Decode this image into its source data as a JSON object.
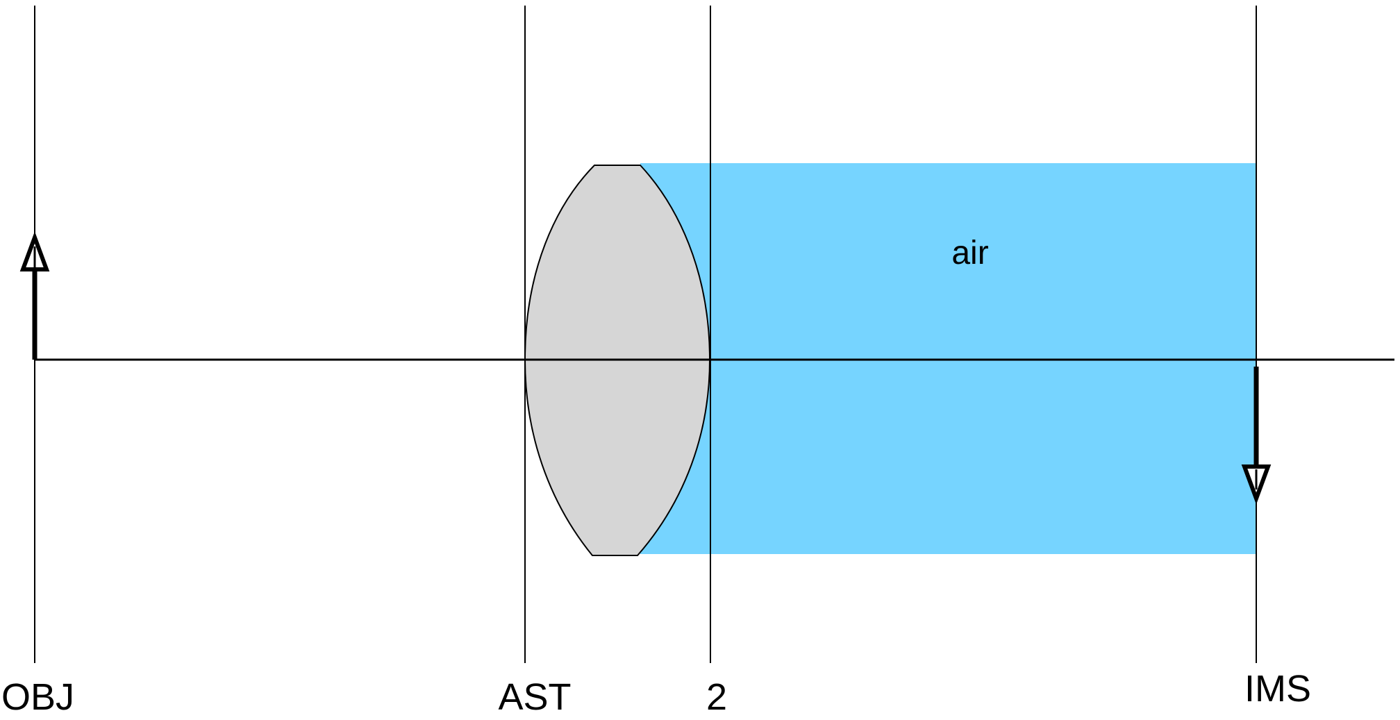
{
  "surfaces": [
    {
      "id": "obj",
      "label": "OBJ"
    },
    {
      "id": "ast",
      "label": "AST"
    },
    {
      "id": "surface-2",
      "label": "2"
    },
    {
      "id": "ims",
      "label": "IMS"
    }
  ],
  "medium": {
    "label": "air",
    "color": "#76d4ff"
  },
  "lens": {
    "color": "#d6d6d6"
  },
  "colors": {
    "line": "#000000",
    "background": "#ffffff"
  }
}
